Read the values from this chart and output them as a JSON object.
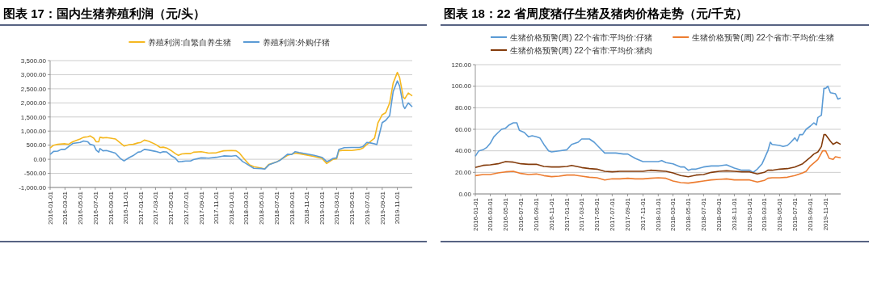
{
  "chart_data": [
    {
      "type": "line",
      "title": "图表 17：国内生猪养殖利润（元/头）",
      "legend": "top",
      "grid": "y",
      "line_style": "solid",
      "marker": "none",
      "xlim": [
        "2016-01-01",
        "2019-12-31"
      ],
      "xticks": [
        "2016-01-01",
        "2016-03-01",
        "2016-05-01",
        "2016-07-01",
        "2016-09-01",
        "2016-11-01",
        "2017-01-01",
        "2017-03-01",
        "2017-05-01",
        "2017-07-01",
        "2017-09-01",
        "2017-11-01",
        "2018-01-01",
        "2018-03-01",
        "2018-05-01",
        "2018-07-01",
        "2018-09-01",
        "2018-11-01",
        "2019-01-01",
        "2019-03-01",
        "2019-05-01",
        "2019-07-01",
        "2019-09-01",
        "2019-11-01"
      ],
      "ylim": [
        -1000,
        3500
      ],
      "yticks": [
        {
          "value": -1000,
          "label": "-1,000.00"
        },
        {
          "value": -500,
          "label": "-500.00"
        },
        {
          "value": 0,
          "label": "0.00"
        },
        {
          "value": 500,
          "label": "500.00"
        },
        {
          "value": 1000,
          "label": "1,000.00"
        },
        {
          "value": 1500,
          "label": "1,500.00"
        },
        {
          "value": 2000,
          "label": "2,000.00"
        },
        {
          "value": 2500,
          "label": "2,500.00"
        },
        {
          "value": 3000,
          "label": "3,000.00"
        },
        {
          "value": 3500,
          "label": "3,500.00"
        }
      ],
      "series": [
        {
          "name": "养殖利润:自繁自养生猪",
          "color": "#f5b820",
          "x": [
            "2016-01-01",
            "2016-01-15",
            "2016-02-01",
            "2016-03-01",
            "2016-03-15",
            "2016-04-01",
            "2016-05-01",
            "2016-05-15",
            "2016-06-01",
            "2016-06-10",
            "2016-06-25",
            "2016-07-05",
            "2016-07-15",
            "2016-07-20",
            "2016-08-01",
            "2016-08-15",
            "2016-09-01",
            "2016-09-20",
            "2016-10-10",
            "2016-10-25",
            "2016-11-15",
            "2016-12-01",
            "2016-12-20",
            "2017-01-01",
            "2017-01-15",
            "2017-02-01",
            "2017-03-01",
            "2017-03-20",
            "2017-04-01",
            "2017-04-15",
            "2017-05-01",
            "2017-05-20",
            "2017-06-01",
            "2017-06-15",
            "2017-07-01",
            "2017-07-20",
            "2017-08-01",
            "2017-09-01",
            "2017-10-01",
            "2017-11-01",
            "2017-12-01",
            "2018-01-01",
            "2018-01-20",
            "2018-02-01",
            "2018-02-15",
            "2018-03-01",
            "2018-03-15",
            "2018-04-01",
            "2018-05-01",
            "2018-05-15",
            "2018-06-01",
            "2018-07-01",
            "2018-07-15",
            "2018-08-15",
            "2018-09-01",
            "2018-09-15",
            "2018-10-01",
            "2018-11-01",
            "2018-12-01",
            "2019-01-01",
            "2019-01-20",
            "2019-02-01",
            "2019-02-15",
            "2019-03-01",
            "2019-03-10",
            "2019-04-01",
            "2019-05-01",
            "2019-06-01",
            "2019-06-15",
            "2019-07-01",
            "2019-08-01",
            "2019-08-15",
            "2019-09-01",
            "2019-09-15",
            "2019-10-01",
            "2019-10-15",
            "2019-11-01",
            "2019-11-10",
            "2019-11-25",
            "2019-12-01",
            "2019-12-15",
            "2019-12-31"
          ],
          "values": [
            400,
            500,
            530,
            550,
            530,
            620,
            720,
            780,
            800,
            830,
            750,
            620,
            620,
            780,
            760,
            770,
            750,
            720,
            580,
            470,
            520,
            530,
            580,
            600,
            680,
            640,
            530,
            420,
            430,
            400,
            320,
            200,
            140,
            190,
            200,
            200,
            250,
            270,
            220,
            230,
            300,
            310,
            300,
            230,
            80,
            -60,
            -200,
            -260,
            -310,
            -340,
            -180,
            -100,
            -30,
            140,
            180,
            220,
            200,
            150,
            100,
            30,
            -150,
            -80,
            0,
            20,
            300,
            320,
            310,
            350,
            400,
            520,
            750,
            1300,
            1580,
            1650,
            2000,
            2700,
            3080,
            2900,
            2200,
            2150,
            2350,
            2250
          ]
        },
        {
          "name": "养殖利润:外购仔猪",
          "color": "#5b9bd5",
          "x": [
            "2016-01-01",
            "2016-01-15",
            "2016-02-01",
            "2016-02-15",
            "2016-03-01",
            "2016-04-01",
            "2016-05-01",
            "2016-05-15",
            "2016-06-01",
            "2016-06-10",
            "2016-06-25",
            "2016-07-05",
            "2016-07-15",
            "2016-07-20",
            "2016-08-01",
            "2016-08-15",
            "2016-09-01",
            "2016-09-20",
            "2016-10-10",
            "2016-10-25",
            "2016-11-15",
            "2016-12-01",
            "2016-12-20",
            "2017-01-01",
            "2017-01-15",
            "2017-02-01",
            "2017-03-01",
            "2017-03-20",
            "2017-04-01",
            "2017-04-15",
            "2017-05-01",
            "2017-05-20",
            "2017-06-01",
            "2017-06-15",
            "2017-07-01",
            "2017-07-20",
            "2017-08-01",
            "2017-09-01",
            "2017-10-01",
            "2017-11-01",
            "2017-12-01",
            "2018-01-01",
            "2018-01-20",
            "2018-02-01",
            "2018-02-15",
            "2018-03-01",
            "2018-03-15",
            "2018-04-01",
            "2018-05-01",
            "2018-05-15",
            "2018-06-01",
            "2018-07-01",
            "2018-07-15",
            "2018-08-15",
            "2018-09-01",
            "2018-09-15",
            "2018-10-01",
            "2018-11-01",
            "2018-12-01",
            "2019-01-01",
            "2019-01-20",
            "2019-02-01",
            "2019-02-15",
            "2019-03-01",
            "2019-03-10",
            "2019-04-01",
            "2019-05-01",
            "2019-06-01",
            "2019-06-15",
            "2019-07-01",
            "2019-07-15",
            "2019-08-01",
            "2019-08-10",
            "2019-08-15",
            "2019-09-01",
            "2019-09-15",
            "2019-10-01",
            "2019-10-15",
            "2019-11-01",
            "2019-11-10",
            "2019-11-25",
            "2019-12-01",
            "2019-12-15",
            "2019-12-31"
          ],
          "values": [
            170,
            280,
            290,
            350,
            350,
            560,
            600,
            650,
            620,
            530,
            500,
            320,
            250,
            380,
            300,
            310,
            270,
            220,
            30,
            -60,
            60,
            130,
            250,
            270,
            350,
            330,
            280,
            230,
            270,
            260,
            140,
            40,
            -90,
            -80,
            -60,
            -60,
            -10,
            50,
            40,
            70,
            120,
            110,
            130,
            40,
            -80,
            -150,
            -230,
            -320,
            -330,
            -350,
            -200,
            -100,
            -40,
            180,
            170,
            270,
            240,
            190,
            140,
            70,
            -80,
            -40,
            30,
            50,
            350,
            410,
            420,
            420,
            450,
            600,
            580,
            550,
            520,
            700,
            1300,
            1380,
            1550,
            2400,
            2780,
            2600,
            1900,
            1800,
            2000,
            1860
          ]
        }
      ]
    },
    {
      "type": "line",
      "title": "图表 18：22 省周度猪仔生猪及猪肉价格走势（元/千克）",
      "legend": "top",
      "grid": "y",
      "line_style": "solid",
      "marker": "none",
      "xlim": [
        "2016-01-01",
        "2019-12-31"
      ],
      "xticks": [
        "2016-01-01",
        "2016-03-01",
        "2016-05-01",
        "2016-07-01",
        "2016-09-01",
        "2016-11-01",
        "2017-01-01",
        "2017-03-01",
        "2017-05-01",
        "2017-07-01",
        "2017-09-01",
        "2017-11-01",
        "2018-01-01",
        "2018-03-01",
        "2018-05-01",
        "2018-07-01",
        "2018-09-01",
        "2018-11-01",
        "2019-01-01",
        "2019-03-01",
        "2019-05-01",
        "2019-07-01",
        "2019-09-01",
        "2019-11-01"
      ],
      "ylim": [
        0,
        120
      ],
      "yticks": [
        {
          "value": 0,
          "label": "0.00"
        },
        {
          "value": 20,
          "label": "20.00"
        },
        {
          "value": 40,
          "label": "40.00"
        },
        {
          "value": 60,
          "label": "60.00"
        },
        {
          "value": 80,
          "label": "80.00"
        },
        {
          "value": 100,
          "label": "100.00"
        },
        {
          "value": 120,
          "label": "120.00"
        }
      ],
      "series": [
        {
          "name": "生猪价格预警(周) 22个省市:平均价:仔猪",
          "color": "#5b9bd5",
          "x": [
            "2016-01-01",
            "2016-01-15",
            "2016-02-01",
            "2016-02-15",
            "2016-03-01",
            "2016-03-15",
            "2016-04-01",
            "2016-04-15",
            "2016-05-01",
            "2016-05-15",
            "2016-06-01",
            "2016-06-15",
            "2016-06-25",
            "2016-07-15",
            "2016-08-01",
            "2016-08-15",
            "2016-09-01",
            "2016-09-15",
            "2016-10-01",
            "2016-10-20",
            "2016-11-01",
            "2016-12-01",
            "2017-01-01",
            "2017-01-20",
            "2017-02-15",
            "2017-03-01",
            "2017-03-15",
            "2017-04-01",
            "2017-04-20",
            "2017-05-15",
            "2017-06-01",
            "2017-06-20",
            "2017-07-15",
            "2017-08-15",
            "2017-09-01",
            "2017-10-01",
            "2017-11-01",
            "2017-12-01",
            "2018-01-01",
            "2018-01-15",
            "2018-02-01",
            "2018-03-01",
            "2018-04-01",
            "2018-04-15",
            "2018-05-01",
            "2018-05-15",
            "2018-06-01",
            "2018-07-01",
            "2018-08-01",
            "2018-09-01",
            "2018-10-01",
            "2018-11-01",
            "2018-12-01",
            "2019-01-01",
            "2019-01-15",
            "2019-02-01",
            "2019-02-20",
            "2019-03-15",
            "2019-03-25",
            "2019-04-01",
            "2019-05-01",
            "2019-05-15",
            "2019-06-01",
            "2019-06-15",
            "2019-07-01",
            "2019-07-10",
            "2019-07-20",
            "2019-08-01",
            "2019-08-15",
            "2019-09-01",
            "2019-09-15",
            "2019-09-25",
            "2019-10-01",
            "2019-10-15",
            "2019-10-25",
            "2019-11-01",
            "2019-11-10",
            "2019-11-20",
            "2019-12-10",
            "2019-12-20",
            "2019-12-31"
          ],
          "values": [
            35,
            40,
            41,
            43,
            47,
            53,
            57,
            60,
            61,
            64,
            66,
            66,
            59,
            57,
            53,
            54,
            53,
            52,
            46,
            40,
            39,
            40,
            41,
            46,
            48,
            51,
            51,
            51,
            48,
            42,
            38,
            38,
            38,
            37,
            37,
            33,
            30,
            30,
            30,
            31,
            29,
            28,
            25,
            25,
            22,
            23,
            23,
            25,
            26,
            26,
            27,
            24,
            22,
            22,
            20,
            23,
            28,
            40,
            48,
            46,
            45,
            44,
            45,
            48,
            52,
            49,
            55,
            55,
            60,
            63,
            66,
            64,
            71,
            73,
            98,
            98,
            100,
            94,
            93,
            88,
            89
          ]
        },
        {
          "name": "生猪价格预警(周) 22个省市:平均价:生猪",
          "color": "#ed7d31",
          "x": [
            "2016-01-01",
            "2016-02-01",
            "2016-03-01",
            "2016-04-01",
            "2016-05-01",
            "2016-06-01",
            "2016-07-01",
            "2016-08-01",
            "2016-09-01",
            "2016-10-01",
            "2016-11-01",
            "2016-12-01",
            "2017-01-01",
            "2017-02-01",
            "2017-03-01",
            "2017-04-01",
            "2017-05-01",
            "2017-06-01",
            "2017-07-01",
            "2017-08-01",
            "2017-09-01",
            "2017-10-01",
            "2017-11-01",
            "2017-12-01",
            "2018-01-01",
            "2018-02-01",
            "2018-03-01",
            "2018-04-01",
            "2018-05-01",
            "2018-06-01",
            "2018-07-01",
            "2018-08-01",
            "2018-09-01",
            "2018-10-01",
            "2018-11-01",
            "2018-12-01",
            "2019-01-01",
            "2019-02-01",
            "2019-03-01",
            "2019-03-15",
            "2019-04-01",
            "2019-05-01",
            "2019-06-01",
            "2019-07-01",
            "2019-08-01",
            "2019-08-15",
            "2019-09-01",
            "2019-10-01",
            "2019-10-20",
            "2019-11-01",
            "2019-11-15",
            "2019-12-01",
            "2019-12-10",
            "2019-12-31"
          ],
          "values": [
            17,
            18,
            18,
            19.5,
            20.5,
            21,
            19,
            18,
            18.5,
            17,
            16,
            16.5,
            17.5,
            17.5,
            16.5,
            15.5,
            15,
            13,
            14,
            14,
            14.5,
            14,
            14,
            14.5,
            15,
            14.5,
            12,
            10.5,
            10,
            11,
            12,
            13,
            13.5,
            14,
            13,
            13,
            13,
            11,
            12.5,
            14.5,
            15,
            15,
            15.5,
            17,
            19.5,
            21,
            26,
            32,
            40,
            40,
            33,
            32,
            34.5,
            33.5
          ]
        },
        {
          "name": "生猪价格预警(周) 22个省市:平均价:猪肉",
          "color": "#843c0c",
          "x": [
            "2016-01-01",
            "2016-02-01",
            "2016-03-01",
            "2016-04-01",
            "2016-05-01",
            "2016-06-01",
            "2016-07-01",
            "2016-08-01",
            "2016-09-01",
            "2016-10-01",
            "2016-11-01",
            "2016-12-01",
            "2017-01-01",
            "2017-01-20",
            "2017-03-01",
            "2017-04-01",
            "2017-05-01",
            "2017-06-01",
            "2017-07-01",
            "2017-08-01",
            "2017-09-01",
            "2017-10-01",
            "2017-11-01",
            "2017-12-01",
            "2018-01-01",
            "2018-02-01",
            "2018-03-01",
            "2018-04-01",
            "2018-05-01",
            "2018-06-01",
            "2018-07-01",
            "2018-08-01",
            "2018-09-01",
            "2018-10-01",
            "2018-11-01",
            "2018-12-01",
            "2019-01-01",
            "2019-02-01",
            "2019-03-01",
            "2019-03-15",
            "2019-04-01",
            "2019-05-01",
            "2019-06-01",
            "2019-07-01",
            "2019-08-01",
            "2019-09-01",
            "2019-09-15",
            "2019-10-01",
            "2019-10-15",
            "2019-10-25",
            "2019-11-01",
            "2019-11-20",
            "2019-12-01",
            "2019-12-15",
            "2019-12-31"
          ],
          "values": [
            24.5,
            26.5,
            27,
            28,
            30,
            29.5,
            28,
            27.5,
            27.5,
            25.5,
            25,
            25,
            25.5,
            26.5,
            24.5,
            23.5,
            23,
            21,
            20.5,
            21,
            21,
            21,
            21,
            22,
            21.5,
            21,
            19.5,
            17,
            16,
            17.5,
            18,
            20,
            21,
            21.5,
            21,
            20.5,
            20.5,
            18.5,
            20,
            22,
            22,
            23,
            23.5,
            25,
            28,
            34,
            37,
            39,
            44,
            55,
            55,
            49,
            46,
            48,
            46
          ]
        }
      ]
    }
  ]
}
